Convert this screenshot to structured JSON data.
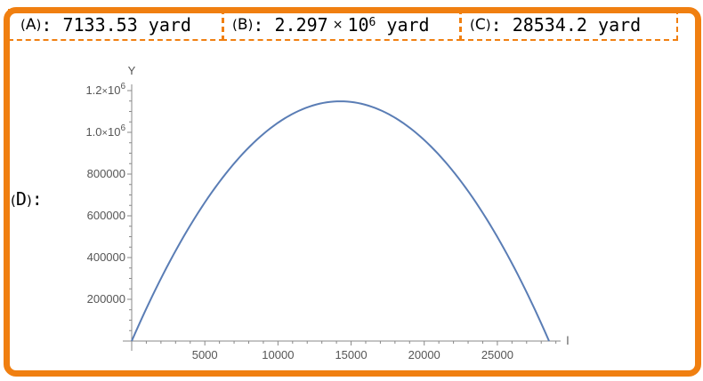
{
  "answers": [
    {
      "id": "A",
      "label": "A",
      "value": "7133.53",
      "unit": "yard"
    },
    {
      "id": "B",
      "label": "B",
      "mantissa": "2.297",
      "times": "×",
      "base": "10",
      "exponent": "6",
      "unit": "yard"
    },
    {
      "id": "C",
      "label": "C",
      "value": "28534.2",
      "unit": "yard"
    }
  ],
  "plot_label": "D",
  "colors": {
    "frame": "#f07f10",
    "curve": "#5a7db5",
    "axis": "#888888",
    "text": "#555555"
  },
  "chart_data": {
    "type": "line",
    "title": "",
    "xlabel": "l",
    "ylabel": "Y",
    "xlim": [
      0,
      28534.2
    ],
    "ylim": [
      0,
      1200000
    ],
    "xticks": [
      5000,
      10000,
      15000,
      20000,
      25000
    ],
    "xtick_labels": [
      "5000",
      "10000",
      "15000",
      "20000",
      "25000"
    ],
    "yticks": [
      200000,
      400000,
      600000,
      800000,
      1000000,
      1200000
    ],
    "ytick_labels": [
      {
        "text": "200000"
      },
      {
        "text": "400000"
      },
      {
        "text": "600000"
      },
      {
        "text": "800000"
      },
      {
        "mantissa": "1.0",
        "times": "×",
        "base": "10",
        "exponent": "6"
      },
      {
        "mantissa": "1.2",
        "times": "×",
        "base": "10",
        "exponent": "6"
      }
    ],
    "series": [
      {
        "x": [
          0,
          2000,
          4000,
          6000,
          8000,
          10000,
          12000,
          14267.1,
          16000,
          18000,
          20000,
          22000,
          24000,
          26000,
          28534.2
        ],
        "y": [
          0,
          301600,
          563400,
          785300,
          967300,
          1109400,
          1211700,
          1148600,
          1221000,
          1187300,
          1113600,
          999900,
          846100,
          652400,
          0
        ]
      }
    ],
    "grid": false,
    "legend": "none"
  }
}
